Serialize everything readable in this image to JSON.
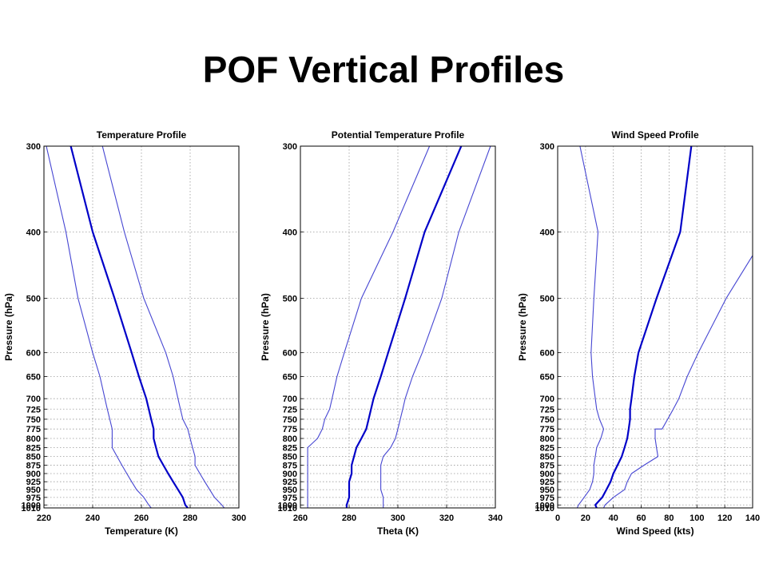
{
  "slide": {
    "title": "POF Vertical Profiles"
  },
  "colors": {
    "thick_line": "#0000c8",
    "thin_line": "#4646d2",
    "grid": "#9a9a9a"
  },
  "chart_data": [
    {
      "type": "line",
      "title": "Temperature Profile",
      "xlabel": "Temperature (K)",
      "ylabel": "Pressure (hPa)",
      "xlim": [
        220,
        300
      ],
      "ylim": [
        300,
        1010
      ],
      "xticks": [
        "220",
        "240",
        "260",
        "280",
        "300"
      ],
      "yticks": [
        "300",
        "400",
        "500",
        "600",
        "650",
        "700",
        "725",
        "750",
        "775",
        "800",
        "825",
        "850",
        "875",
        "900",
        "925",
        "950",
        "975",
        "1000",
        "1010"
      ],
      "grid": true,
      "series": [
        {
          "style": "thin",
          "points": [
            [
              221,
              300
            ],
            [
              229,
              400
            ],
            [
              234,
              500
            ],
            [
              240,
              600
            ],
            [
              243,
              650
            ],
            [
              245,
              700
            ],
            [
              246,
              725
            ],
            [
              247,
              750
            ],
            [
              248,
              775
            ],
            [
              248,
              800
            ],
            [
              248,
              825
            ],
            [
              250,
              850
            ],
            [
              252,
              875
            ],
            [
              254,
              900
            ],
            [
              256,
              925
            ],
            [
              258,
              950
            ],
            [
              261,
              975
            ],
            [
              263,
              1000
            ],
            [
              264,
              1010
            ]
          ]
        },
        {
          "style": "thick",
          "points": [
            [
              231,
              300
            ],
            [
              240,
              400
            ],
            [
              249,
              500
            ],
            [
              256,
              600
            ],
            [
              259,
              650
            ],
            [
              262,
              700
            ],
            [
              263,
              725
            ],
            [
              264,
              750
            ],
            [
              265,
              775
            ],
            [
              265,
              800
            ],
            [
              266,
              825
            ],
            [
              267,
              850
            ],
            [
              269,
              875
            ],
            [
              271,
              900
            ],
            [
              273,
              925
            ],
            [
              275,
              950
            ],
            [
              277,
              975
            ],
            [
              278,
              1000
            ],
            [
              279,
              1010
            ]
          ]
        },
        {
          "style": "thin",
          "points": [
            [
              244,
              300
            ],
            [
              253,
              400
            ],
            [
              261,
              500
            ],
            [
              270,
              600
            ],
            [
              273,
              650
            ],
            [
              275,
              700
            ],
            [
              276,
              725
            ],
            [
              277,
              750
            ],
            [
              279,
              775
            ],
            [
              280,
              800
            ],
            [
              281,
              825
            ],
            [
              282,
              850
            ],
            [
              282,
              875
            ],
            [
              284,
              900
            ],
            [
              286,
              925
            ],
            [
              288,
              950
            ],
            [
              290,
              975
            ],
            [
              293,
              1000
            ],
            [
              294,
              1010
            ]
          ]
        }
      ]
    },
    {
      "type": "line",
      "title": "Potential Temperature Profile",
      "xlabel": "Theta (K)",
      "ylabel": "Pressure (hPa)",
      "xlim": [
        260,
        340
      ],
      "ylim": [
        300,
        1010
      ],
      "xticks": [
        "260",
        "280",
        "300",
        "320",
        "340"
      ],
      "yticks": [
        "300",
        "400",
        "500",
        "600",
        "650",
        "700",
        "725",
        "750",
        "775",
        "800",
        "825",
        "850",
        "875",
        "900",
        "925",
        "950",
        "975",
        "1000",
        "1010"
      ],
      "grid": true,
      "series": [
        {
          "style": "thin",
          "points": [
            [
              313,
              300
            ],
            [
              298,
              400
            ],
            [
              285,
              500
            ],
            [
              278,
              600
            ],
            [
              275,
              650
            ],
            [
              273,
              700
            ],
            [
              272,
              725
            ],
            [
              270,
              750
            ],
            [
              269,
              775
            ],
            [
              267,
              800
            ],
            [
              263,
              825
            ],
            [
              263,
              850
            ],
            [
              263,
              875
            ],
            [
              263,
              900
            ],
            [
              263,
              925
            ],
            [
              263,
              950
            ],
            [
              263,
              975
            ],
            [
              263,
              1000
            ],
            [
              263,
              1010
            ]
          ]
        },
        {
          "style": "thick",
          "points": [
            [
              326,
              300
            ],
            [
              311,
              400
            ],
            [
              303,
              500
            ],
            [
              296,
              600
            ],
            [
              293,
              650
            ],
            [
              290,
              700
            ],
            [
              289,
              725
            ],
            [
              288,
              750
            ],
            [
              287,
              775
            ],
            [
              285,
              800
            ],
            [
              283,
              825
            ],
            [
              282,
              850
            ],
            [
              281,
              875
            ],
            [
              281,
              900
            ],
            [
              280,
              925
            ],
            [
              280,
              950
            ],
            [
              280,
              975
            ],
            [
              279,
              1000
            ],
            [
              279,
              1010
            ]
          ]
        },
        {
          "style": "thin",
          "points": [
            [
              338,
              300
            ],
            [
              325,
              400
            ],
            [
              318,
              500
            ],
            [
              310,
              600
            ],
            [
              306,
              650
            ],
            [
              303,
              700
            ],
            [
              302,
              725
            ],
            [
              301,
              750
            ],
            [
              300,
              775
            ],
            [
              299,
              800
            ],
            [
              297,
              825
            ],
            [
              294,
              850
            ],
            [
              293,
              875
            ],
            [
              293,
              900
            ],
            [
              293,
              925
            ],
            [
              293,
              950
            ],
            [
              294,
              975
            ],
            [
              294,
              1000
            ],
            [
              294,
              1010
            ]
          ]
        }
      ]
    },
    {
      "type": "line",
      "title": "Wind Speed Profile",
      "xlabel": "Wind Speed (kts)",
      "ylabel": "Pressure (hPa)",
      "xlim": [
        0,
        140
      ],
      "ylim": [
        300,
        1010
      ],
      "xticks": [
        "0",
        "20",
        "40",
        "60",
        "80",
        "100",
        "120",
        "140"
      ],
      "yticks": [
        "300",
        "400",
        "500",
        "600",
        "650",
        "700",
        "725",
        "750",
        "775",
        "800",
        "825",
        "850",
        "875",
        "900",
        "925",
        "950",
        "975",
        "1000",
        "1010"
      ],
      "grid": true,
      "series": [
        {
          "style": "thin",
          "points": [
            [
              16,
              300
            ],
            [
              29,
              400
            ],
            [
              26,
              500
            ],
            [
              24,
              600
            ],
            [
              25,
              650
            ],
            [
              27,
              700
            ],
            [
              28,
              725
            ],
            [
              30,
              750
            ],
            [
              33,
              775
            ],
            [
              31,
              800
            ],
            [
              28,
              825
            ],
            [
              27,
              850
            ],
            [
              26,
              875
            ],
            [
              26,
              900
            ],
            [
              25,
              925
            ],
            [
              23,
              950
            ],
            [
              19,
              975
            ],
            [
              15,
              1000
            ],
            [
              14,
              1010
            ]
          ]
        },
        {
          "style": "thick",
          "points": [
            [
              96,
              300
            ],
            [
              88,
              400
            ],
            [
              71,
              500
            ],
            [
              58,
              600
            ],
            [
              55,
              650
            ],
            [
              53,
              700
            ],
            [
              52,
              725
            ],
            [
              52,
              750
            ],
            [
              51,
              775
            ],
            [
              50,
              800
            ],
            [
              48,
              825
            ],
            [
              46,
              850
            ],
            [
              43,
              875
            ],
            [
              40,
              900
            ],
            [
              38,
              925
            ],
            [
              35,
              950
            ],
            [
              32,
              975
            ],
            [
              27,
              1000
            ],
            [
              28,
              1010
            ]
          ]
        },
        {
          "style": "thin",
          "points": [
            [
              140,
              433
            ],
            [
              121,
              500
            ],
            [
              101,
              600
            ],
            [
              93,
              650
            ],
            [
              87,
              700
            ],
            [
              83,
              725
            ],
            [
              79,
              750
            ],
            [
              75,
              775
            ],
            [
              70,
              775
            ],
            [
              70,
              800
            ],
            [
              71,
              825
            ],
            [
              72,
              850
            ],
            [
              62,
              875
            ],
            [
              53,
              900
            ],
            [
              50,
              925
            ],
            [
              48,
              950
            ],
            [
              40,
              975
            ],
            [
              34,
              1000
            ],
            [
              33,
              1010
            ]
          ]
        }
      ]
    }
  ]
}
